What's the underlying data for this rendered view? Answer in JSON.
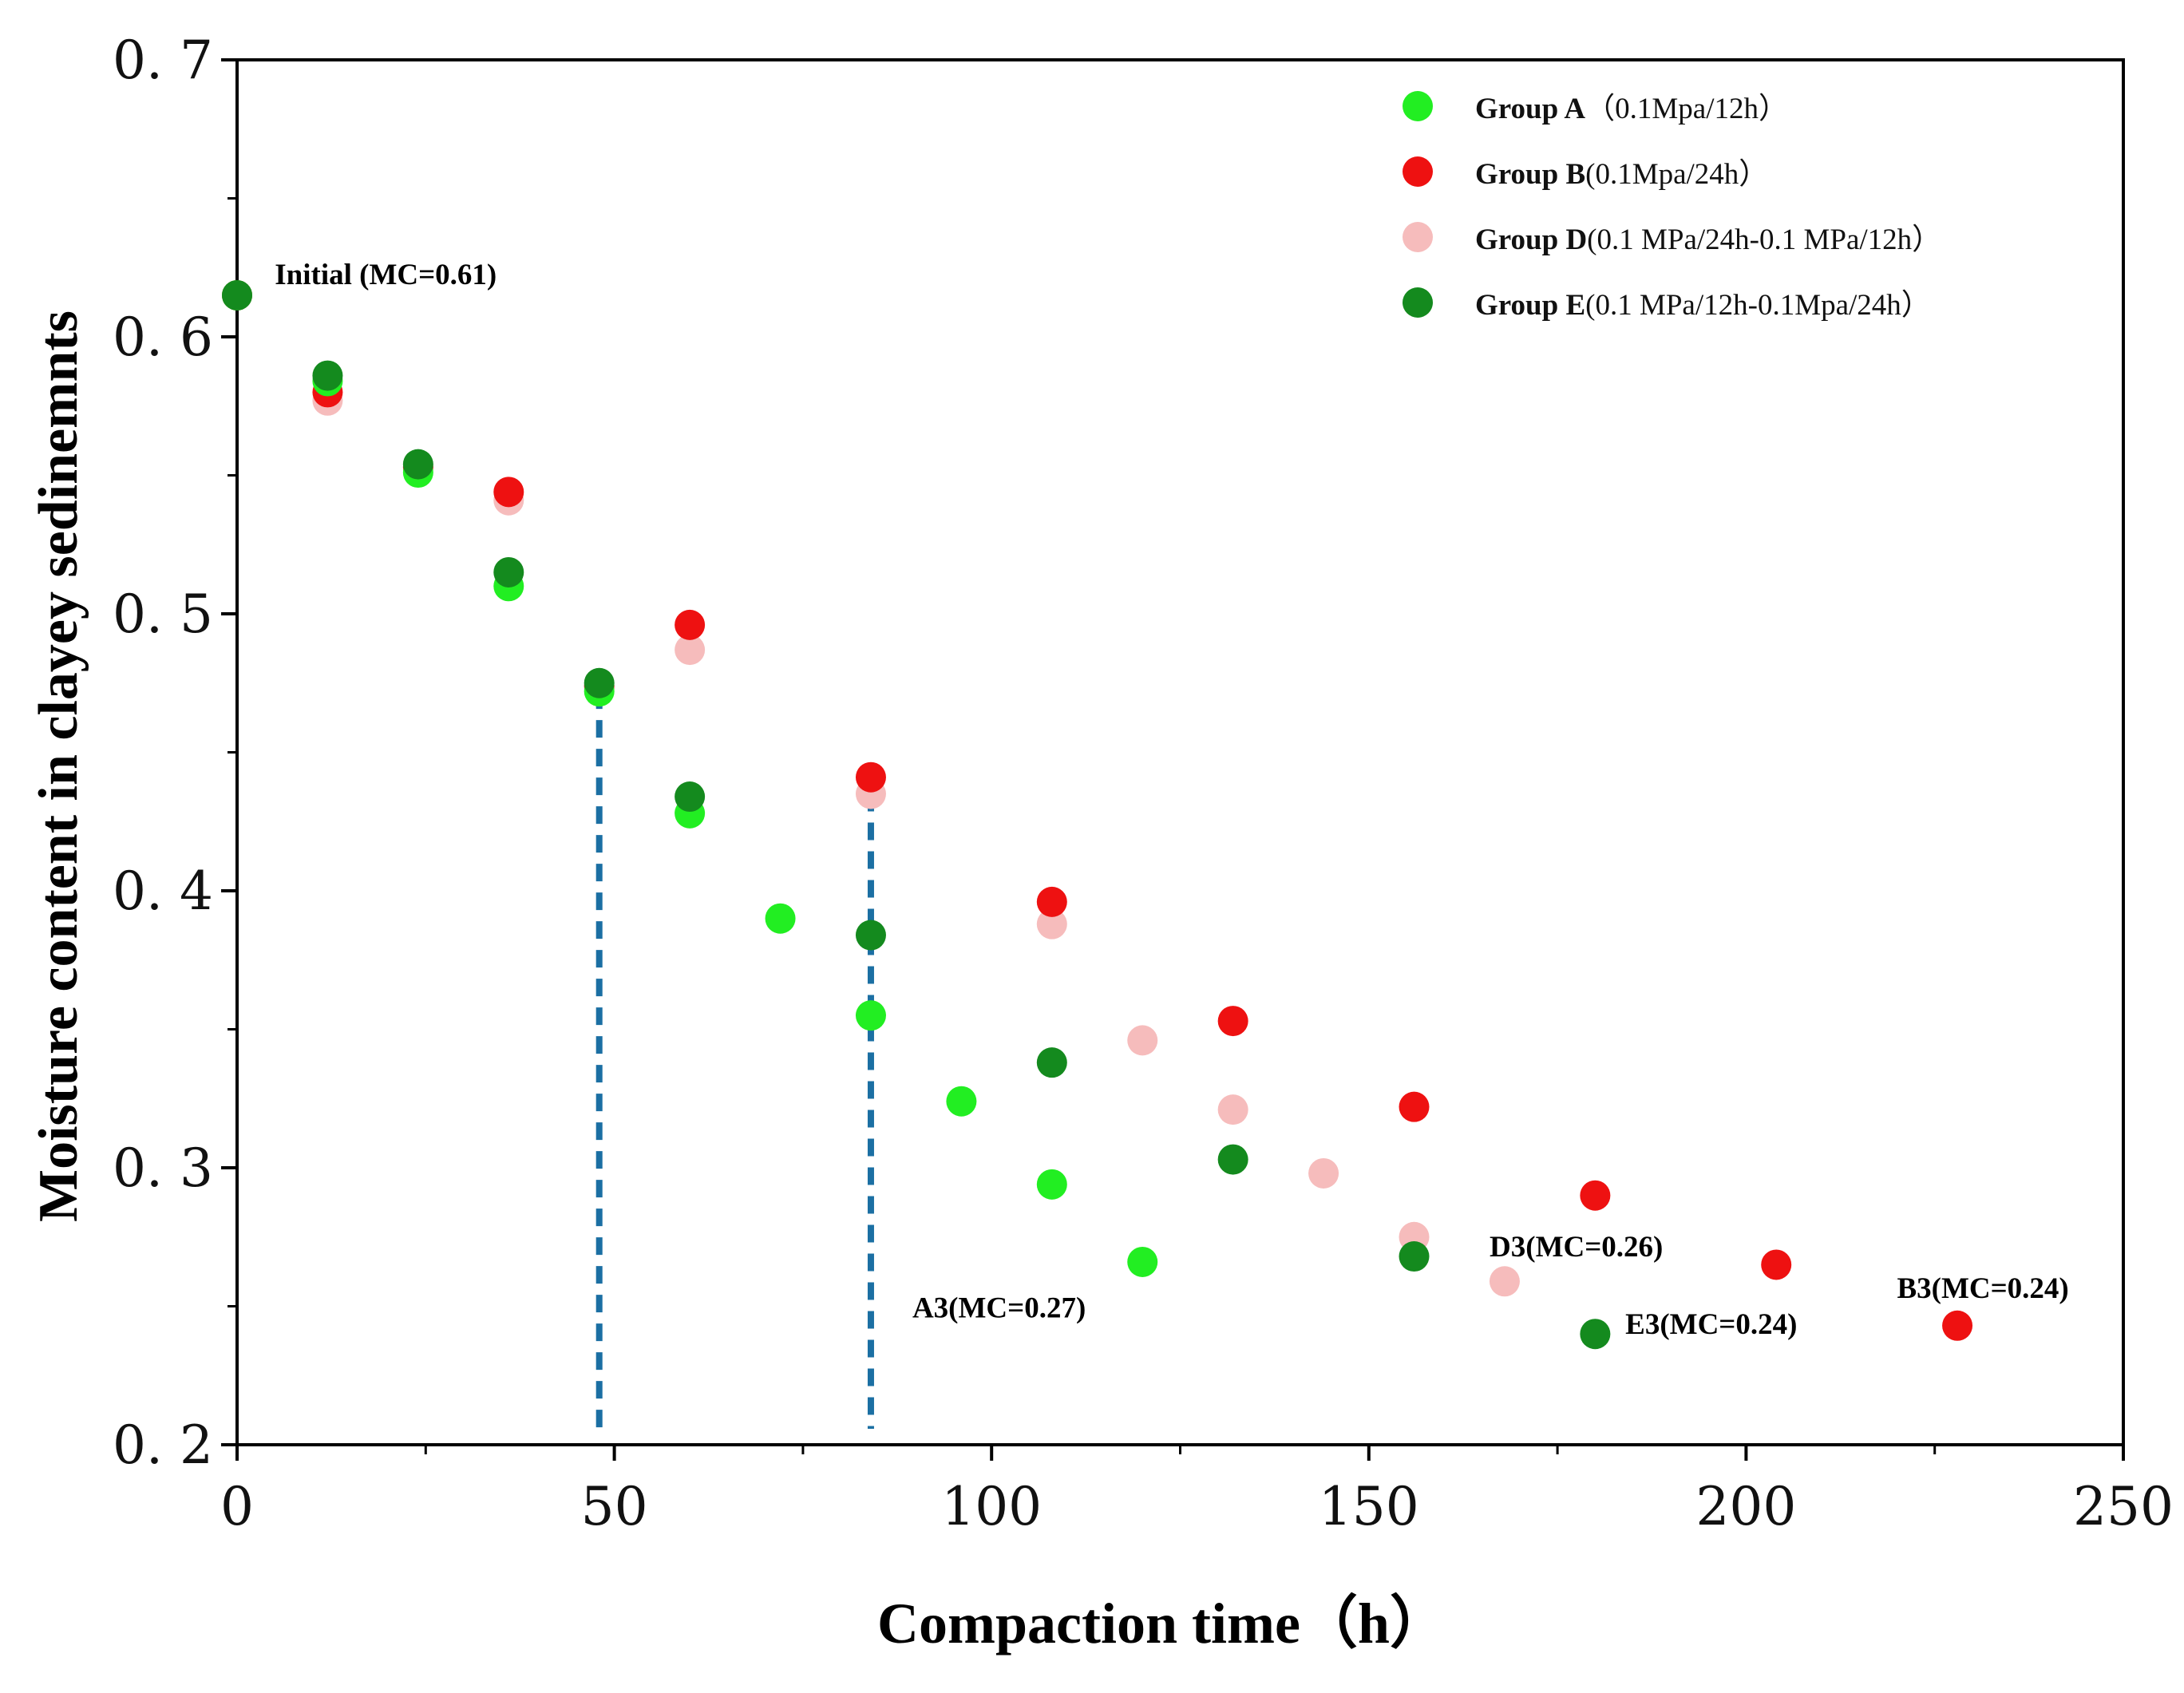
{
  "chart_data": {
    "type": "scatter",
    "title": "",
    "xlabel": "Compaction  time（h）",
    "ylabel": "Moisture content in clayey sedinemnts",
    "xlim": [
      0,
      250
    ],
    "ylim": [
      0.2,
      0.7
    ],
    "x_ticks": [
      0,
      50,
      100,
      150,
      200,
      250
    ],
    "y_ticks": [
      0.2,
      0.3,
      0.4,
      0.5,
      0.6,
      0.7
    ],
    "x_tick_labels": [
      "0",
      "50",
      "100",
      "150",
      "200",
      "250"
    ],
    "y_tick_labels": [
      "0. 2",
      "0. 3",
      "0. 4",
      "0. 5",
      "0. 6",
      "0. 7"
    ],
    "legend_position": "top-right",
    "series": [
      {
        "name": "Group A",
        "legend_bold": "Group A",
        "legend_rest": "（0.1Mpa/12h）",
        "color": "#22ee22",
        "points": [
          [
            0,
            0.615
          ],
          [
            12,
            0.584
          ],
          [
            24,
            0.551
          ],
          [
            36,
            0.51
          ],
          [
            48,
            0.472
          ],
          [
            60,
            0.428
          ],
          [
            72,
            0.39
          ],
          [
            84,
            0.355
          ],
          [
            96,
            0.324
          ],
          [
            108,
            0.294
          ],
          [
            120,
            0.266
          ]
        ]
      },
      {
        "name": "Group B",
        "legend_bold": "Group B",
        "legend_rest": "(0.1Mpa/24h）",
        "color": "#ee1111",
        "points": [
          [
            0,
            0.615
          ],
          [
            12,
            0.58
          ],
          [
            24,
            0.553
          ],
          [
            36,
            0.544
          ],
          [
            48,
            0.474
          ],
          [
            60,
            0.496
          ],
          [
            84,
            0.441
          ],
          [
            108,
            0.396
          ],
          [
            132,
            0.353
          ],
          [
            156,
            0.322
          ],
          [
            180,
            0.29
          ],
          [
            204,
            0.265
          ],
          [
            228,
            0.243
          ]
        ]
      },
      {
        "name": "Group D",
        "legend_bold": "Group D",
        "legend_rest": "(0.1 MPa/24h-0.1 MPa/12h）",
        "color": "#f6bcbc",
        "points": [
          [
            0,
            0.615
          ],
          [
            12,
            0.577
          ],
          [
            24,
            0.552
          ],
          [
            36,
            0.541
          ],
          [
            48,
            0.473
          ],
          [
            60,
            0.487
          ],
          [
            84,
            0.435
          ],
          [
            108,
            0.388
          ],
          [
            120,
            0.346
          ],
          [
            132,
            0.321
          ],
          [
            144,
            0.298
          ],
          [
            156,
            0.275
          ],
          [
            168,
            0.259
          ]
        ]
      },
      {
        "name": "Group E",
        "legend_bold": "Group E",
        "legend_rest": "(0.1 MPa/12h-0.1Mpa/24h）",
        "color": "#148a1e",
        "points": [
          [
            0,
            0.615
          ],
          [
            12,
            0.586
          ],
          [
            24,
            0.554
          ],
          [
            36,
            0.515
          ],
          [
            48,
            0.475
          ],
          [
            60,
            0.434
          ],
          [
            84,
            0.384
          ],
          [
            108,
            0.338
          ],
          [
            132,
            0.303
          ],
          [
            156,
            0.268
          ],
          [
            180,
            0.24
          ]
        ]
      }
    ],
    "vertical_lines": [
      {
        "x": 48,
        "y_top": 0.472,
        "style": "dashed",
        "color": "#1b6fa3"
      },
      {
        "x": 84,
        "y_top": 0.435,
        "style": "dashed",
        "color": "#1b6fa3"
      }
    ],
    "annotations": [
      {
        "text": "Initial (MC=0.61)",
        "x": 5,
        "y": 0.619,
        "anchor": "start"
      },
      {
        "text": "A3(MC=0.27)",
        "x": 89.5,
        "y": 0.246,
        "anchor": "start"
      },
      {
        "text": "D3(MC=0.26)",
        "x": 166,
        "y": 0.268,
        "anchor": "start"
      },
      {
        "text": "E3(MC=0.24)",
        "x": 184,
        "y": 0.24,
        "anchor": "start"
      },
      {
        "text": "B3(MC=0.24)",
        "x": 220,
        "y": 0.253,
        "anchor": "start"
      }
    ]
  }
}
